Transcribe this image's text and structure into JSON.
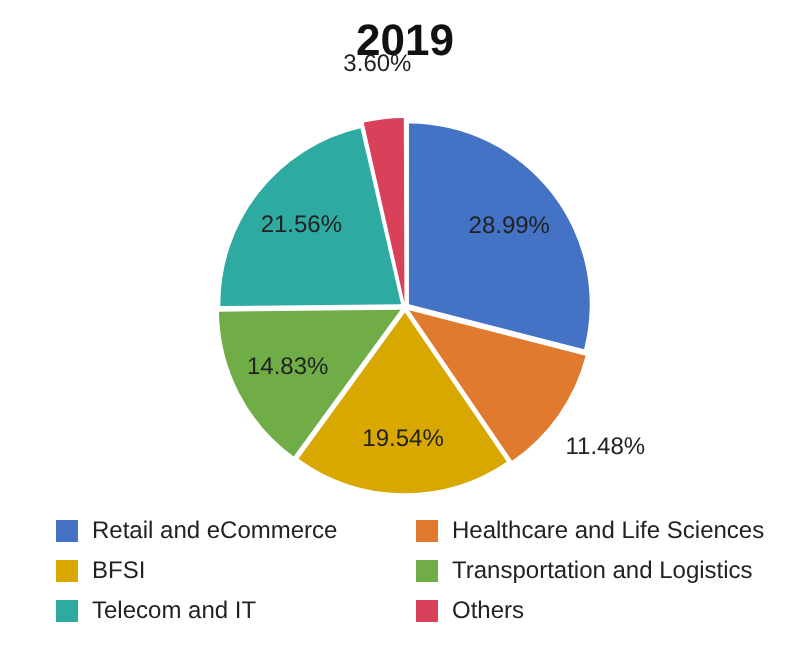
{
  "chart_data": {
    "type": "pie",
    "title": "2019",
    "categories": [
      "Retail and eCommerce",
      "Healthcare and Life Sciences",
      "BFSI",
      "Transportation and Logistics",
      "Telecom and IT",
      "Others"
    ],
    "values": [
      28.99,
      11.48,
      19.54,
      14.83,
      21.56,
      3.6
    ],
    "value_labels": [
      "28.99%",
      "11.48%",
      "19.54%",
      "14.83%",
      "21.56%",
      "3.60%"
    ],
    "colors": [
      "#4472c4",
      "#e07a2e",
      "#d9a800",
      "#70ad47",
      "#2eaaa0",
      "#d9415a"
    ],
    "legend": "bottom"
  }
}
